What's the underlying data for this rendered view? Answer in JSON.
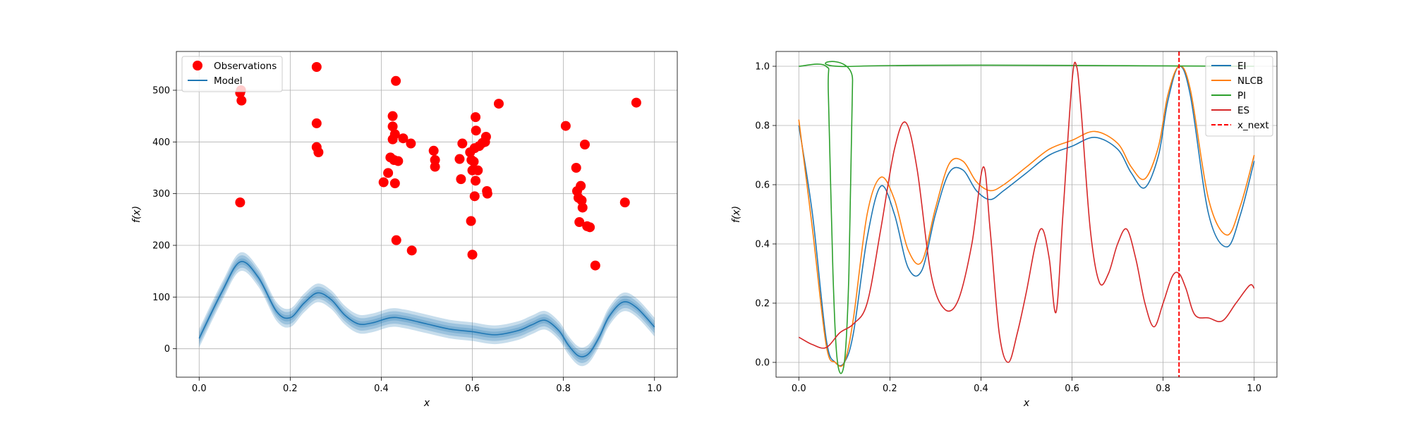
{
  "chart_data": [
    {
      "type": "scatter",
      "xlabel": "x",
      "ylabel": "f(x)",
      "xlim": [
        -0.05,
        1.05
      ],
      "ylim": [
        -55,
        575
      ],
      "xticks": [
        "0.0",
        "0.2",
        "0.4",
        "0.6",
        "0.8",
        "1.0"
      ],
      "yticks": [
        "0",
        "100",
        "200",
        "300",
        "400",
        "500"
      ],
      "grid": true,
      "legend_position": "top-left",
      "legend": [
        "Observations",
        "Model"
      ],
      "series": [
        {
          "name": "Observations",
          "kind": "scatter",
          "color": "#ff0000",
          "points": [
            [
              0.09,
              495
            ],
            [
              0.093,
              480
            ],
            [
              0.092,
              500
            ],
            [
              0.09,
              283
            ],
            [
              0.258,
              545
            ],
            [
              0.258,
              436
            ],
            [
              0.258,
              390
            ],
            [
              0.262,
              380
            ],
            [
              0.405,
              322
            ],
            [
              0.415,
              340
            ],
            [
              0.42,
              370
            ],
            [
              0.425,
              450
            ],
            [
              0.425,
              430
            ],
            [
              0.425,
              405
            ],
            [
              0.428,
              365
            ],
            [
              0.43,
              415
            ],
            [
              0.43,
              320
            ],
            [
              0.432,
              518
            ],
            [
              0.433,
              210
            ],
            [
              0.437,
              363
            ],
            [
              0.448,
              407
            ],
            [
              0.465,
              397
            ],
            [
              0.467,
              190
            ],
            [
              0.515,
              383
            ],
            [
              0.518,
              365
            ],
            [
              0.518,
              352
            ],
            [
              0.572,
              367
            ],
            [
              0.575,
              328
            ],
            [
              0.578,
              397
            ],
            [
              0.595,
              380
            ],
            [
              0.597,
              247
            ],
            [
              0.598,
              365
            ],
            [
              0.6,
              345
            ],
            [
              0.6,
              182
            ],
            [
              0.603,
              362
            ],
            [
              0.605,
              295
            ],
            [
              0.605,
              388
            ],
            [
              0.607,
              448
            ],
            [
              0.607,
              325
            ],
            [
              0.608,
              422
            ],
            [
              0.612,
              345
            ],
            [
              0.615,
              392
            ],
            [
              0.622,
              398
            ],
            [
              0.628,
              400
            ],
            [
              0.63,
              410
            ],
            [
              0.632,
              305
            ],
            [
              0.633,
              300
            ],
            [
              0.658,
              474
            ],
            [
              0.805,
              431
            ],
            [
              0.828,
              350
            ],
            [
              0.83,
              305
            ],
            [
              0.833,
              292
            ],
            [
              0.835,
              245
            ],
            [
              0.838,
              315
            ],
            [
              0.84,
              287
            ],
            [
              0.842,
              273
            ],
            [
              0.847,
              395
            ],
            [
              0.852,
              237
            ],
            [
              0.858,
              235
            ],
            [
              0.87,
              161
            ],
            [
              0.935,
              283
            ],
            [
              0.96,
              476
            ]
          ]
        },
        {
          "name": "Model",
          "kind": "line",
          "color": "#1f77b4",
          "x": [
            0.0,
            0.05,
            0.09,
            0.13,
            0.17,
            0.2,
            0.23,
            0.26,
            0.29,
            0.32,
            0.35,
            0.38,
            0.42,
            0.45,
            0.5,
            0.55,
            0.6,
            0.65,
            0.7,
            0.73,
            0.76,
            0.79,
            0.81,
            0.83,
            0.845,
            0.86,
            0.88,
            0.9,
            0.93,
            0.96,
            1.0
          ],
          "y": [
            20,
            110,
            168,
            138,
            72,
            60,
            88,
            108,
            95,
            65,
            48,
            50,
            60,
            58,
            48,
            38,
            33,
            27,
            35,
            46,
            55,
            35,
            8,
            -12,
            -15,
            -5,
            25,
            62,
            90,
            80,
            42
          ],
          "band_half_widths": [
            6,
            12,
            18
          ]
        }
      ]
    },
    {
      "type": "line",
      "xlabel": "x",
      "ylabel": "f(x)",
      "xlim": [
        -0.05,
        1.05
      ],
      "ylim": [
        -0.05,
        1.05
      ],
      "xticks": [
        "0.0",
        "0.2",
        "0.4",
        "0.6",
        "0.8",
        "1.0"
      ],
      "yticks": [
        "0.0",
        "0.2",
        "0.4",
        "0.6",
        "0.8",
        "1.0"
      ],
      "grid": true,
      "legend_position": "top-right",
      "legend": [
        "EI",
        "NLCB",
        "PI",
        "ES",
        "x_next"
      ],
      "x_next": 0.835,
      "series": [
        {
          "name": "EI",
          "color": "#1f77b4",
          "x": [
            0.0,
            0.03,
            0.06,
            0.08,
            0.1,
            0.12,
            0.15,
            0.18,
            0.21,
            0.24,
            0.27,
            0.3,
            0.33,
            0.36,
            0.39,
            0.42,
            0.45,
            0.5,
            0.55,
            0.6,
            0.65,
            0.7,
            0.73,
            0.76,
            0.79,
            0.81,
            0.835,
            0.86,
            0.9,
            0.94,
            0.97,
            1.0
          ],
          "y": [
            0.8,
            0.5,
            0.08,
            0.0,
            0.0,
            0.1,
            0.42,
            0.595,
            0.5,
            0.32,
            0.31,
            0.5,
            0.64,
            0.65,
            0.58,
            0.55,
            0.58,
            0.64,
            0.7,
            0.73,
            0.76,
            0.72,
            0.64,
            0.59,
            0.7,
            0.88,
            1.0,
            0.9,
            0.5,
            0.39,
            0.5,
            0.68
          ]
        },
        {
          "name": "NLCB",
          "color": "#ff7f0e",
          "x": [
            0.0,
            0.03,
            0.06,
            0.08,
            0.1,
            0.12,
            0.15,
            0.18,
            0.21,
            0.24,
            0.27,
            0.3,
            0.33,
            0.36,
            0.39,
            0.42,
            0.45,
            0.5,
            0.55,
            0.6,
            0.65,
            0.7,
            0.73,
            0.76,
            0.79,
            0.81,
            0.835,
            0.86,
            0.9,
            0.94,
            0.97,
            1.0
          ],
          "y": [
            0.82,
            0.45,
            0.06,
            0.0,
            0.0,
            0.15,
            0.5,
            0.625,
            0.55,
            0.38,
            0.34,
            0.52,
            0.67,
            0.68,
            0.61,
            0.58,
            0.6,
            0.66,
            0.72,
            0.75,
            0.78,
            0.74,
            0.66,
            0.62,
            0.73,
            0.9,
            1.0,
            0.92,
            0.55,
            0.43,
            0.53,
            0.7
          ]
        },
        {
          "name": "PI",
          "color": "#2ca02c",
          "x": [
            0.0,
            0.06,
            0.065,
            0.075,
            0.085,
            0.1,
            0.11,
            0.118,
            0.125,
            1.0
          ],
          "y": [
            1.0,
            1.0,
            0.9,
            0.3,
            0.0,
            0.0,
            0.3,
            0.95,
            1.0,
            1.0
          ]
        },
        {
          "name": "ES",
          "color": "#d62728",
          "x": [
            0.0,
            0.03,
            0.06,
            0.09,
            0.12,
            0.15,
            0.18,
            0.21,
            0.235,
            0.26,
            0.29,
            0.32,
            0.35,
            0.38,
            0.405,
            0.42,
            0.44,
            0.46,
            0.48,
            0.5,
            0.52,
            0.535,
            0.55,
            0.565,
            0.58,
            0.6,
            0.61,
            0.62,
            0.64,
            0.66,
            0.68,
            0.7,
            0.72,
            0.74,
            0.76,
            0.78,
            0.8,
            0.82,
            0.835,
            0.85,
            0.87,
            0.9,
            0.93,
            0.96,
            0.99,
            1.0
          ],
          "y": [
            0.085,
            0.06,
            0.05,
            0.1,
            0.13,
            0.2,
            0.45,
            0.72,
            0.81,
            0.65,
            0.3,
            0.18,
            0.21,
            0.4,
            0.66,
            0.45,
            0.1,
            0.0,
            0.1,
            0.24,
            0.4,
            0.45,
            0.35,
            0.17,
            0.5,
            0.95,
            1.0,
            0.85,
            0.45,
            0.27,
            0.3,
            0.4,
            0.45,
            0.35,
            0.2,
            0.12,
            0.2,
            0.29,
            0.3,
            0.25,
            0.16,
            0.15,
            0.14,
            0.2,
            0.26,
            0.25
          ]
        }
      ]
    }
  ]
}
